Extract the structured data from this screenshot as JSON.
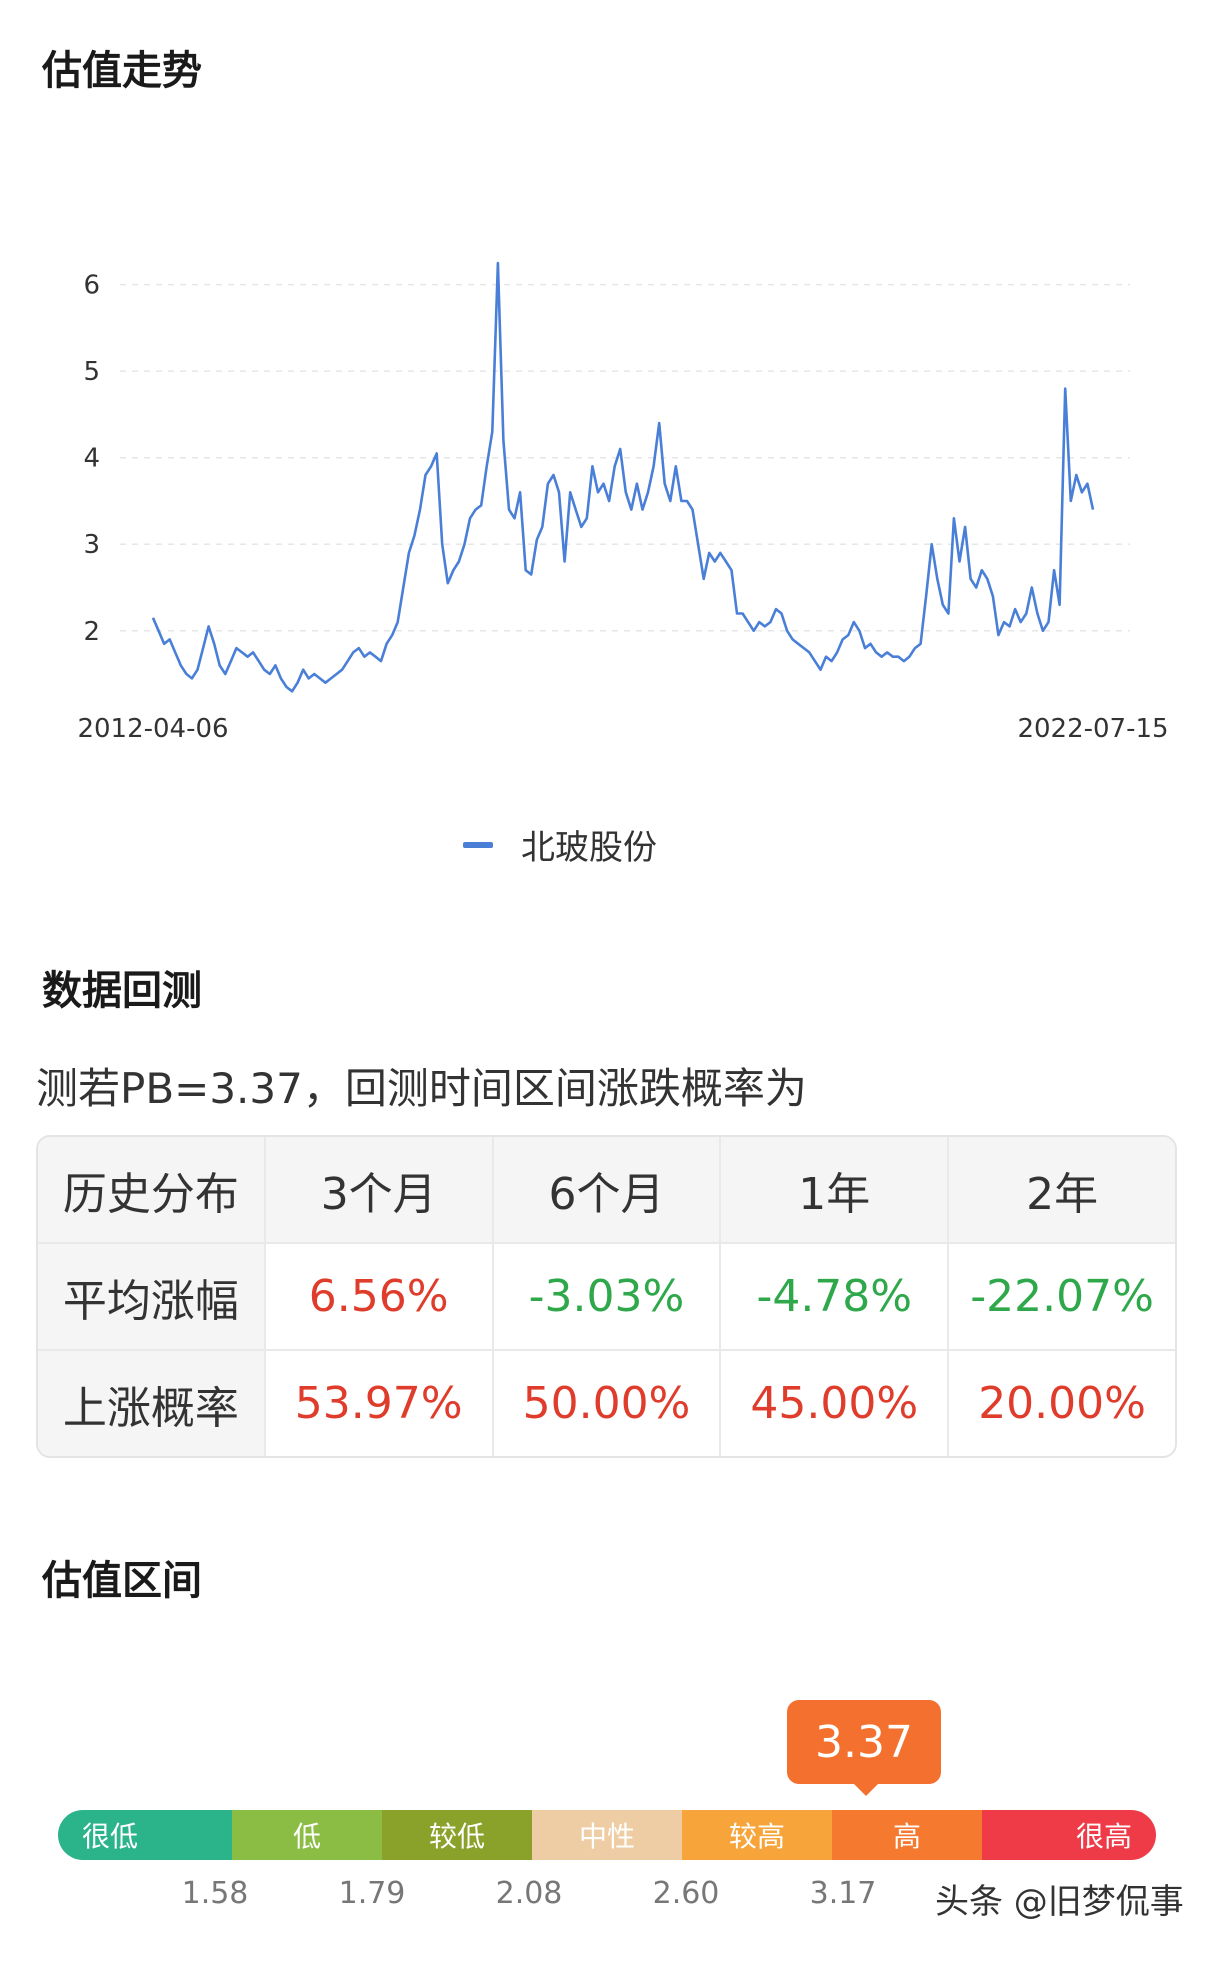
{
  "sections": {
    "trend_title": "估值走势",
    "backtest_title": "数据回测",
    "range_title": "估值区间"
  },
  "chart_data": {
    "type": "line",
    "x_start_label": "2012-04-06",
    "x_end_label": "2022-07-15",
    "yticks": [
      2,
      3,
      4,
      5,
      6
    ],
    "ylim": [
      1.2,
      6.4
    ],
    "grid": true,
    "legend_position": "bottom",
    "series": [
      {
        "name": "北玻股份",
        "color": "#4a7fd8",
        "values": [
          2.15,
          2.0,
          1.85,
          1.9,
          1.75,
          1.6,
          1.5,
          1.45,
          1.55,
          1.8,
          2.05,
          1.85,
          1.6,
          1.5,
          1.65,
          1.8,
          1.75,
          1.7,
          1.75,
          1.65,
          1.55,
          1.5,
          1.6,
          1.45,
          1.35,
          1.3,
          1.4,
          1.55,
          1.45,
          1.5,
          1.45,
          1.4,
          1.45,
          1.5,
          1.55,
          1.65,
          1.75,
          1.8,
          1.7,
          1.75,
          1.7,
          1.65,
          1.85,
          1.95,
          2.1,
          2.5,
          2.9,
          3.1,
          3.4,
          3.8,
          3.9,
          4.05,
          3.0,
          2.55,
          2.7,
          2.8,
          3.0,
          3.3,
          3.4,
          3.45,
          3.9,
          4.3,
          6.25,
          4.2,
          3.4,
          3.3,
          3.6,
          2.7,
          2.65,
          3.05,
          3.2,
          3.7,
          3.8,
          3.6,
          2.8,
          3.6,
          3.4,
          3.2,
          3.3,
          3.9,
          3.6,
          3.7,
          3.5,
          3.9,
          4.1,
          3.6,
          3.4,
          3.7,
          3.4,
          3.6,
          3.9,
          4.4,
          3.7,
          3.5,
          3.9,
          3.5,
          3.5,
          3.4,
          3.0,
          2.6,
          2.9,
          2.8,
          2.9,
          2.8,
          2.7,
          2.2,
          2.2,
          2.1,
          2.0,
          2.1,
          2.05,
          2.1,
          2.25,
          2.2,
          2.0,
          1.9,
          1.85,
          1.8,
          1.75,
          1.65,
          1.55,
          1.7,
          1.65,
          1.75,
          1.9,
          1.95,
          2.1,
          2.0,
          1.8,
          1.85,
          1.75,
          1.7,
          1.75,
          1.7,
          1.7,
          1.65,
          1.7,
          1.8,
          1.85,
          2.4,
          3.0,
          2.6,
          2.3,
          2.2,
          3.3,
          2.8,
          3.2,
          2.6,
          2.5,
          2.7,
          2.6,
          2.4,
          1.95,
          2.1,
          2.05,
          2.25,
          2.1,
          2.2,
          2.5,
          2.2,
          2.0,
          2.1,
          2.7,
          2.3,
          4.8,
          3.5,
          3.8,
          3.6,
          3.7,
          3.4
        ]
      }
    ]
  },
  "backtest": {
    "description": "测若PB=3.37，回测时间区间涨跌概率为",
    "headers": [
      "历史分布",
      "3个月",
      "6个月",
      "1年",
      "2年"
    ],
    "rows": [
      {
        "label": "平均涨幅",
        "values": [
          "6.56%",
          "-3.03%",
          "-4.78%",
          "-22.07%"
        ]
      },
      {
        "label": "上涨概率",
        "values": [
          "53.97%",
          "50.00%",
          "45.00%",
          "20.00%"
        ]
      }
    ]
  },
  "valuation_range": {
    "current": "3.37",
    "segments": [
      {
        "label": "很低",
        "color": "#2bb38a"
      },
      {
        "label": "低",
        "color": "#8bbd44"
      },
      {
        "label": "较低",
        "color": "#8aa12a"
      },
      {
        "label": "中性",
        "color": "#efcda4"
      },
      {
        "label": "较高",
        "color": "#f7a43a"
      },
      {
        "label": "高",
        "color": "#f5792f"
      },
      {
        "label": "很高",
        "color": "#ef3b48"
      }
    ],
    "boundaries": [
      "1.58",
      "1.79",
      "2.08",
      "2.60",
      "3.17"
    ],
    "marker_fraction": 0.733
  },
  "watermark": "头条 @旧梦侃事"
}
